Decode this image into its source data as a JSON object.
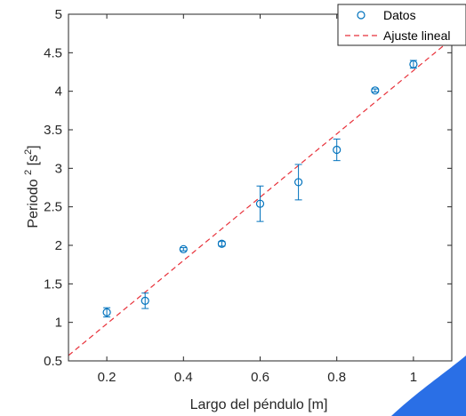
{
  "chart_data": {
    "type": "scatter",
    "title": "",
    "xlabel": "Largo del péndulo [m]",
    "ylabel": "Periodo ² [s²]",
    "ylabel_parts": {
      "base": "Periodo ",
      "sup1": "2",
      "unit_open": " [s",
      "sup2": "2",
      "unit_close": "]"
    },
    "xlim": [
      0.1,
      1.1
    ],
    "ylim": [
      0.5,
      5
    ],
    "xticks": [
      0.2,
      0.4,
      0.6,
      0.8,
      1
    ],
    "xtick_labels": [
      "0.2",
      "0.4",
      "0.6",
      "0.8",
      "1"
    ],
    "yticks": [
      0.5,
      1,
      1.5,
      2,
      2.5,
      3,
      3.5,
      4,
      4.5,
      5
    ],
    "ytick_labels": [
      "0.5",
      "1",
      "1.5",
      "2",
      "2.5",
      "3",
      "3.5",
      "4",
      "4.5",
      "5"
    ],
    "grid": false,
    "legend_position": "top-right",
    "series": [
      {
        "name": "Datos",
        "kind": "errorbar-markers",
        "color": "#0072BD",
        "x": [
          0.2,
          0.3,
          0.4,
          0.5,
          0.6,
          0.7,
          0.8,
          0.9,
          1.0
        ],
        "y": [
          1.13,
          1.28,
          1.95,
          2.02,
          2.54,
          2.82,
          3.24,
          4.01,
          4.35
        ],
        "err": [
          0.06,
          0.1,
          0.02,
          0.03,
          0.23,
          0.23,
          0.14,
          0.02,
          0.05
        ]
      },
      {
        "name": "Ajuste lineal",
        "kind": "dashed-line",
        "color": "#E8313A",
        "x": [
          0.1,
          1.1
        ],
        "y": [
          0.57,
          4.68
        ]
      }
    ]
  }
}
